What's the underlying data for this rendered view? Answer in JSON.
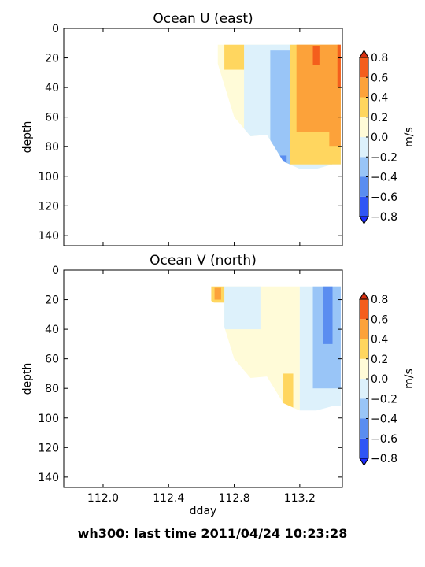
{
  "suptitle": "wh300: last time 2011/04/24 10:23:28",
  "levels": [
    -0.8,
    -0.6,
    -0.4,
    -0.2,
    0.0,
    0.2,
    0.4,
    0.6,
    0.8
  ],
  "colors": {
    "under": "#1a2bff",
    "bins": [
      "#2f55f5",
      "#5a8df0",
      "#99c5f7",
      "#ddf1fb",
      "#fffbd8",
      "#ffd65f",
      "#fca23a",
      "#f45e1c"
    ],
    "over": "#d93010"
  },
  "chart_data": [
    {
      "type": "heatmap",
      "title": "Ocean U (east)",
      "ylabel": "depth",
      "xlabel": "",
      "xlim": [
        111.76,
        113.46
      ],
      "ylim": [
        147,
        0
      ],
      "y_inverted": true,
      "xticks": [
        "112.0",
        "112.4",
        "112.8",
        "113.2"
      ],
      "yticks": [
        "0",
        "20",
        "40",
        "60",
        "80",
        "100",
        "120",
        "140"
      ],
      "colorbar": {
        "label": "m/s",
        "ticks": [
          "0.8",
          "0.6",
          "0.4",
          "0.2",
          "0.0",
          "−0.2",
          "−0.4",
          "−0.6",
          "−0.8"
        ]
      },
      "data_extent": {
        "depth_top": 11,
        "x": [
          112.6,
          112.7,
          112.8,
          112.9,
          113.0,
          113.1,
          113.2,
          113.3,
          113.4,
          113.45
        ],
        "max_depth": [
          16,
          24,
          60,
          73,
          72,
          90,
          95,
          95,
          92,
          92
        ]
      },
      "regions": [
        {
          "level": 0.0,
          "x": [
            112.7,
            113.46
          ],
          "depth": [
            11,
            95
          ]
        },
        {
          "level": -0.2,
          "x": [
            112.86,
            113.46
          ],
          "depth": [
            11,
            95
          ]
        },
        {
          "level": -0.2,
          "x": [
            113.02,
            113.16
          ],
          "depth": [
            11,
            95
          ]
        },
        {
          "level": -0.4,
          "x": [
            113.02,
            113.14
          ],
          "depth": [
            15,
            95
          ]
        },
        {
          "level": -0.6,
          "x": [
            113.08,
            113.12
          ],
          "depth": [
            86,
            95
          ]
        },
        {
          "level": 0.2,
          "x": [
            112.74,
            112.86
          ],
          "depth": [
            11,
            28
          ]
        },
        {
          "level": 0.2,
          "x": [
            113.14,
            113.46
          ],
          "depth": [
            11,
            92
          ]
        },
        {
          "level": 0.4,
          "x": [
            113.18,
            113.44
          ],
          "depth": [
            11,
            70
          ]
        },
        {
          "level": 0.4,
          "x": [
            113.38,
            113.46
          ],
          "depth": [
            40,
            80
          ]
        },
        {
          "level": 0.6,
          "x": [
            113.28,
            113.32
          ],
          "depth": [
            12,
            25
          ]
        },
        {
          "level": 0.6,
          "x": [
            113.43,
            113.46
          ],
          "depth": [
            11,
            40
          ]
        }
      ]
    },
    {
      "type": "heatmap",
      "title": "Ocean V (north)",
      "ylabel": "depth",
      "xlabel": "dday",
      "xlim": [
        111.76,
        113.46
      ],
      "ylim": [
        147,
        0
      ],
      "y_inverted": true,
      "xticks": [
        "112.0",
        "112.4",
        "112.8",
        "113.2"
      ],
      "yticks": [
        "0",
        "20",
        "40",
        "60",
        "80",
        "100",
        "120",
        "140"
      ],
      "colorbar": {
        "label": "m/s",
        "ticks": [
          "0.8",
          "0.6",
          "0.4",
          "0.2",
          "0.0",
          "−0.2",
          "−0.4",
          "−0.6",
          "−0.8"
        ]
      },
      "data_extent": {
        "depth_top": 11,
        "x": [
          112.6,
          112.7,
          112.8,
          112.9,
          113.0,
          113.1,
          113.2,
          113.3,
          113.4,
          113.45
        ],
        "max_depth": [
          16,
          24,
          60,
          73,
          72,
          90,
          95,
          95,
          92,
          92
        ]
      },
      "regions": [
        {
          "level": 0.0,
          "x": [
            112.74,
            113.2
          ],
          "depth": [
            11,
            95
          ]
        },
        {
          "level": -0.2,
          "x": [
            112.74,
            112.96
          ],
          "depth": [
            11,
            40
          ]
        },
        {
          "level": -0.2,
          "x": [
            113.2,
            113.46
          ],
          "depth": [
            11,
            95
          ]
        },
        {
          "level": -0.4,
          "x": [
            113.28,
            113.46
          ],
          "depth": [
            11,
            80
          ]
        },
        {
          "level": -0.6,
          "x": [
            113.34,
            113.4
          ],
          "depth": [
            11,
            50
          ]
        },
        {
          "level": 0.2,
          "x": [
            112.66,
            112.74
          ],
          "depth": [
            11,
            22
          ]
        },
        {
          "level": 0.2,
          "x": [
            113.1,
            113.16
          ],
          "depth": [
            70,
            95
          ]
        },
        {
          "level": 0.4,
          "x": [
            112.68,
            112.72
          ],
          "depth": [
            12,
            20
          ]
        }
      ]
    }
  ]
}
